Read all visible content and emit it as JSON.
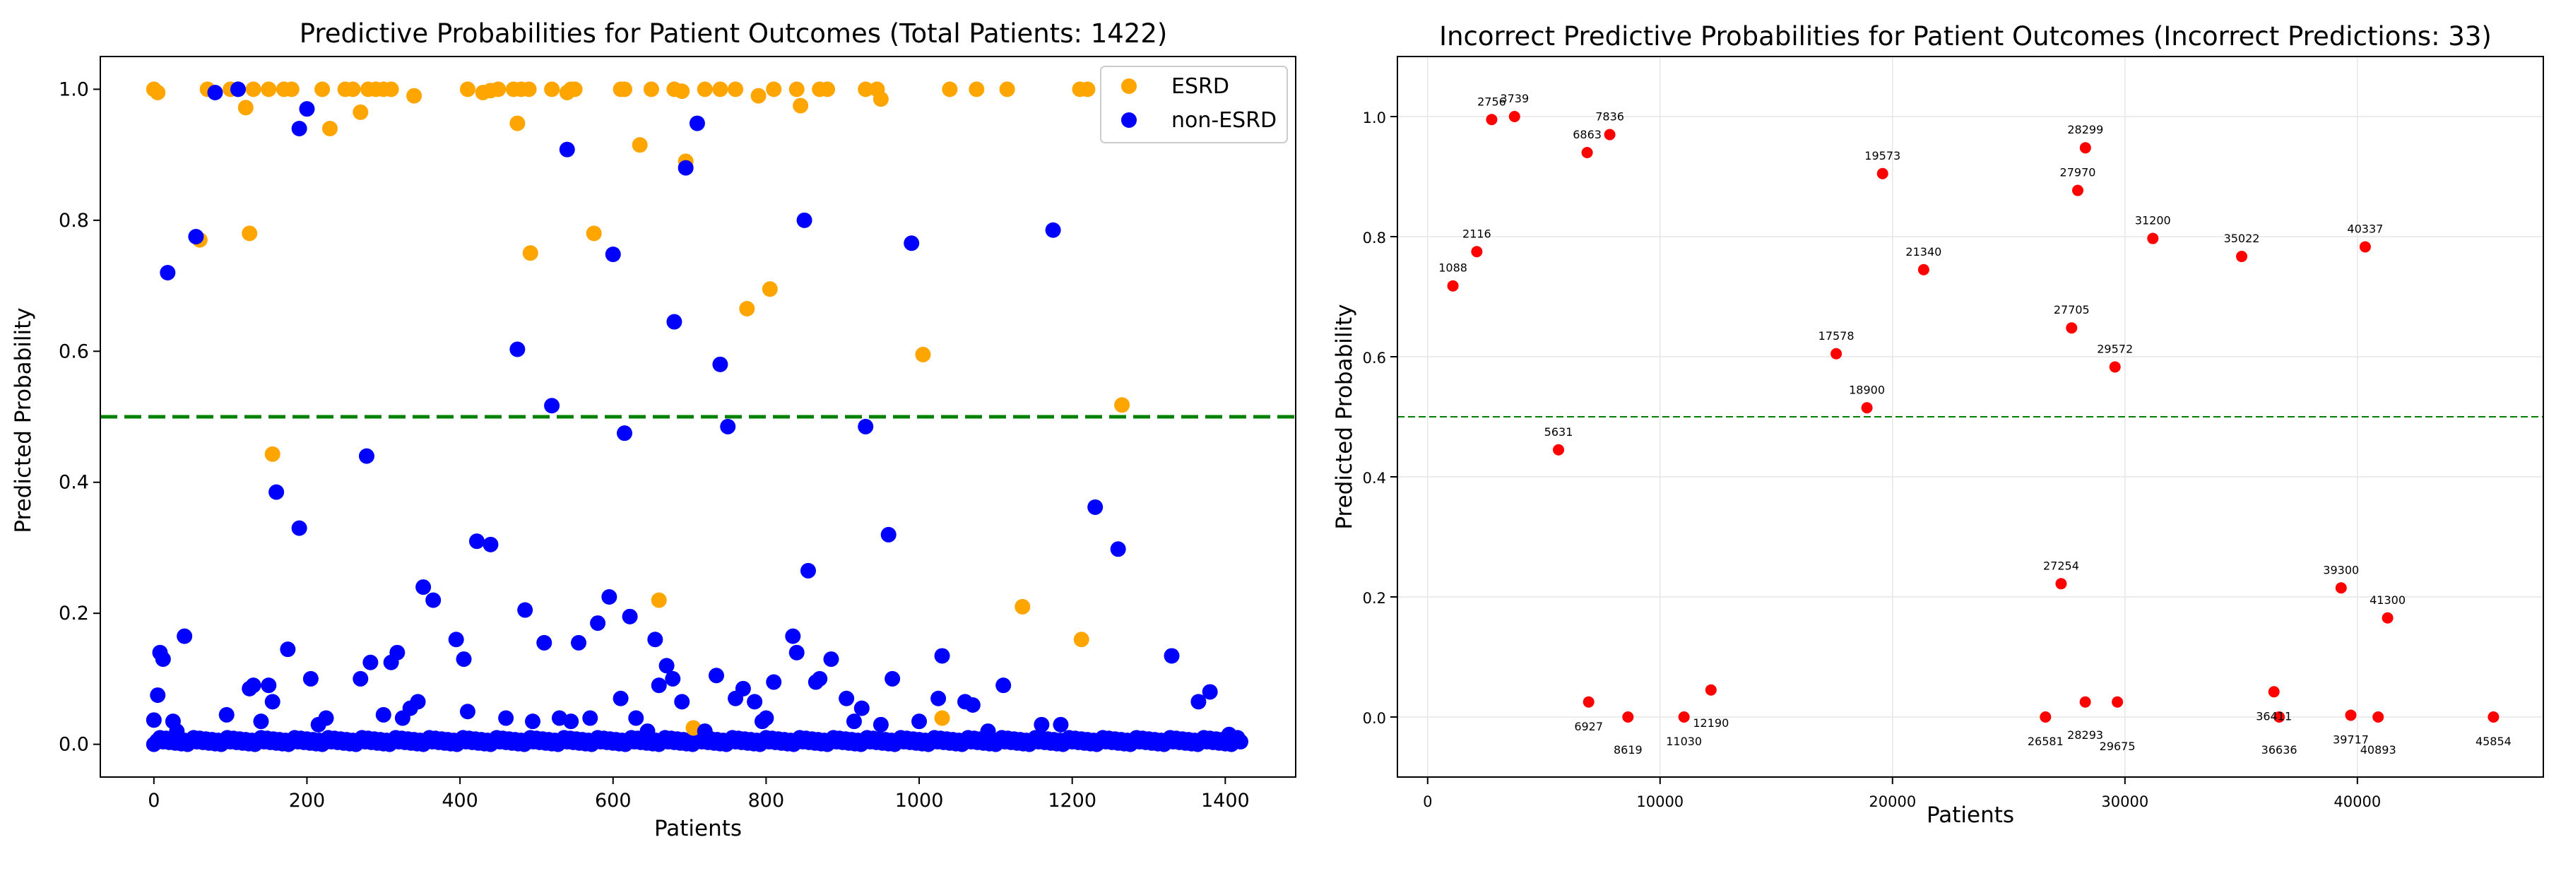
{
  "colors": {
    "esrd": "#FFA500",
    "non_esrd": "#0000FF",
    "threshold": "#008000",
    "incorrect": "#FF0000",
    "grid": "#b0b0b0"
  },
  "chart_data": [
    {
      "type": "scatter",
      "title": "Predictive Probabilities for Patient Outcomes (Total Patients: 1422)",
      "xlabel": "Patients",
      "ylabel": "Predicted Probability",
      "xlim": [
        -70,
        1492
      ],
      "ylim": [
        -0.05,
        1.05
      ],
      "xticks": [
        0,
        200,
        400,
        600,
        800,
        1000,
        1200,
        1400
      ],
      "xtick_labels": [
        "0",
        "200",
        "400",
        "600",
        "800",
        "1000",
        "1200",
        "1400"
      ],
      "yticks": [
        0.0,
        0.2,
        0.4,
        0.6,
        0.8,
        1.0
      ],
      "ytick_labels": [
        "0.0",
        "0.2",
        "0.4",
        "0.6",
        "0.8",
        "1.0"
      ],
      "threshold": 0.5,
      "grid": false,
      "legend": {
        "placement": "top-right",
        "entries": [
          "ESRD",
          "non-ESRD"
        ]
      },
      "series": [
        {
          "name": "ESRD",
          "points": [
            [
              0,
              1.0
            ],
            [
              5,
              0.995
            ],
            [
              60,
              0.77
            ],
            [
              70,
              1.0
            ],
            [
              100,
              1.0
            ],
            [
              110,
              1.0
            ],
            [
              120,
              0.972
            ],
            [
              125,
              0.78
            ],
            [
              130,
              1.0
            ],
            [
              150,
              1.0
            ],
            [
              155,
              0.443
            ],
            [
              170,
              1.0
            ],
            [
              180,
              1.0
            ],
            [
              220,
              1.0
            ],
            [
              230,
              0.94
            ],
            [
              250,
              1.0
            ],
            [
              260,
              1.0
            ],
            [
              270,
              0.965
            ],
            [
              280,
              1.0
            ],
            [
              290,
              1.0
            ],
            [
              300,
              1.0
            ],
            [
              310,
              1.0
            ],
            [
              340,
              0.99
            ],
            [
              410,
              1.0
            ],
            [
              430,
              0.995
            ],
            [
              440,
              0.998
            ],
            [
              450,
              1.0
            ],
            [
              470,
              1.0
            ],
            [
              475,
              0.948
            ],
            [
              480,
              1.0
            ],
            [
              490,
              1.0
            ],
            [
              492,
              0.75
            ],
            [
              520,
              1.0
            ],
            [
              540,
              0.995
            ],
            [
              545,
              1.0
            ],
            [
              550,
              1.0
            ],
            [
              575,
              0.78
            ],
            [
              610,
              1.0
            ],
            [
              615,
              1.0
            ],
            [
              635,
              0.915
            ],
            [
              650,
              1.0
            ],
            [
              660,
              0.22
            ],
            [
              680,
              1.0
            ],
            [
              690,
              0.997
            ],
            [
              695,
              0.89
            ],
            [
              705,
              0.025
            ],
            [
              720,
              1.0
            ],
            [
              740,
              1.0
            ],
            [
              760,
              1.0
            ],
            [
              775,
              0.665
            ],
            [
              790,
              0.99
            ],
            [
              805,
              0.695
            ],
            [
              810,
              1.0
            ],
            [
              840,
              1.0
            ],
            [
              845,
              0.975
            ],
            [
              870,
              1.0
            ],
            [
              880,
              1.0
            ],
            [
              930,
              1.0
            ],
            [
              945,
              1.0
            ],
            [
              950,
              0.985
            ],
            [
              1005,
              0.595
            ],
            [
              1030,
              0.04
            ],
            [
              1040,
              1.0
            ],
            [
              1075,
              1.0
            ],
            [
              1115,
              1.0
            ],
            [
              1135,
              0.21
            ],
            [
              1210,
              1.0
            ],
            [
              1212,
              0.16
            ],
            [
              1220,
              1.0
            ],
            [
              1265,
              0.518
            ]
          ]
        },
        {
          "name": "non-ESRD",
          "points": [
            [
              0,
              0.037
            ],
            [
              5,
              0.075
            ],
            [
              8,
              0.14
            ],
            [
              12,
              0.13
            ],
            [
              18,
              0.72
            ],
            [
              25,
              0.035
            ],
            [
              30,
              0.02
            ],
            [
              40,
              0.165
            ],
            [
              55,
              0.775
            ],
            [
              80,
              0.995
            ],
            [
              95,
              0.045
            ],
            [
              110,
              1.0
            ],
            [
              125,
              0.085
            ],
            [
              130,
              0.09
            ],
            [
              140,
              0.035
            ],
            [
              150,
              0.09
            ],
            [
              155,
              0.065
            ],
            [
              160,
              0.385
            ],
            [
              175,
              0.145
            ],
            [
              190,
              0.94
            ],
            [
              190,
              0.33
            ],
            [
              200,
              0.97
            ],
            [
              205,
              0.1
            ],
            [
              215,
              0.03
            ],
            [
              225,
              0.04
            ],
            [
              270,
              0.1
            ],
            [
              278,
              0.44
            ],
            [
              283,
              0.125
            ],
            [
              300,
              0.045
            ],
            [
              310,
              0.125
            ],
            [
              318,
              0.14
            ],
            [
              325,
              0.04
            ],
            [
              335,
              0.055
            ],
            [
              345,
              0.065
            ],
            [
              352,
              0.24
            ],
            [
              365,
              0.22
            ],
            [
              395,
              0.16
            ],
            [
              405,
              0.13
            ],
            [
              410,
              0.05
            ],
            [
              422,
              0.31
            ],
            [
              440,
              0.305
            ],
            [
              460,
              0.04
            ],
            [
              475,
              0.603
            ],
            [
              485,
              0.205
            ],
            [
              495,
              0.035
            ],
            [
              510,
              0.155
            ],
            [
              520,
              0.517
            ],
            [
              530,
              0.04
            ],
            [
              540,
              0.908
            ],
            [
              545,
              0.035
            ],
            [
              555,
              0.155
            ],
            [
              570,
              0.04
            ],
            [
              580,
              0.185
            ],
            [
              595,
              0.225
            ],
            [
              600,
              0.748
            ],
            [
              610,
              0.07
            ],
            [
              615,
              0.475
            ],
            [
              622,
              0.195
            ],
            [
              630,
              0.04
            ],
            [
              645,
              0.02
            ],
            [
              655,
              0.16
            ],
            [
              660,
              0.09
            ],
            [
              670,
              0.12
            ],
            [
              678,
              0.1
            ],
            [
              680,
              0.645
            ],
            [
              690,
              0.065
            ],
            [
              695,
              0.88
            ],
            [
              710,
              0.948
            ],
            [
              720,
              0.02
            ],
            [
              735,
              0.105
            ],
            [
              740,
              0.58
            ],
            [
              750,
              0.485
            ],
            [
              760,
              0.07
            ],
            [
              770,
              0.085
            ],
            [
              785,
              0.065
            ],
            [
              795,
              0.035
            ],
            [
              800,
              0.04
            ],
            [
              810,
              0.095
            ],
            [
              835,
              0.165
            ],
            [
              840,
              0.14
            ],
            [
              850,
              0.8
            ],
            [
              855,
              0.265
            ],
            [
              865,
              0.095
            ],
            [
              870,
              0.1
            ],
            [
              885,
              0.13
            ],
            [
              905,
              0.07
            ],
            [
              915,
              0.035
            ],
            [
              925,
              0.055
            ],
            [
              930,
              0.485
            ],
            [
              950,
              0.03
            ],
            [
              960,
              0.32
            ],
            [
              965,
              0.1
            ],
            [
              990,
              0.765
            ],
            [
              1000,
              0.035
            ],
            [
              1025,
              0.07
            ],
            [
              1030,
              0.135
            ],
            [
              1060,
              0.065
            ],
            [
              1070,
              0.06
            ],
            [
              1090,
              0.02
            ],
            [
              1110,
              0.09
            ],
            [
              1160,
              0.03
            ],
            [
              1175,
              0.785
            ],
            [
              1185,
              0.03
            ],
            [
              1230,
              0.362
            ],
            [
              1260,
              0.298
            ],
            [
              1330,
              0.135
            ],
            [
              1365,
              0.065
            ],
            [
              1380,
              0.08
            ],
            [
              1405,
              0.015
            ]
          ]
        }
      ]
    },
    {
      "type": "scatter",
      "title": "Incorrect Predictive Probabilities for Patient Outcomes (Incorrect Predictions: 33)",
      "xlabel": "Patients",
      "ylabel": "Predicted Probability",
      "xlim": [
        -1300,
        48000
      ],
      "ylim": [
        -0.1,
        1.1
      ],
      "xticks": [
        0,
        10000,
        20000,
        30000,
        40000
      ],
      "xtick_labels": [
        "0",
        "10000",
        "20000",
        "30000",
        "40000"
      ],
      "yticks": [
        0.0,
        0.2,
        0.4,
        0.6,
        0.8,
        1.0
      ],
      "ytick_labels": [
        "0.0",
        "0.2",
        "0.4",
        "0.6",
        "0.8",
        "1.0"
      ],
      "threshold": 0.5,
      "grid": true,
      "points": [
        {
          "id": "1088",
          "x": 1088,
          "y": 0.718,
          "label_pos": "above"
        },
        {
          "id": "2116",
          "x": 2116,
          "y": 0.775,
          "label_pos": "above"
        },
        {
          "id": "2756",
          "x": 2756,
          "y": 0.995,
          "label_pos": "above"
        },
        {
          "id": "3739",
          "x": 3739,
          "y": 1.0,
          "label_pos": "above"
        },
        {
          "id": "5631",
          "x": 5631,
          "y": 0.445,
          "label_pos": "above"
        },
        {
          "id": "6863",
          "x": 6863,
          "y": 0.94,
          "label_pos": "above"
        },
        {
          "id": "6927",
          "x": 6927,
          "y": 0.025,
          "label_pos": "below"
        },
        {
          "id": "7836",
          "x": 7836,
          "y": 0.97,
          "label_pos": "above"
        },
        {
          "id": "8619",
          "x": 8619,
          "y": 0.0,
          "label_pos": "below"
        },
        {
          "id": "11030",
          "x": 11030,
          "y": 0.0,
          "label_pos": "below"
        },
        {
          "id": "12190",
          "x": 12190,
          "y": 0.045,
          "label_pos": "below"
        },
        {
          "id": "17578",
          "x": 17578,
          "y": 0.605,
          "label_pos": "above"
        },
        {
          "id": "18900",
          "x": 18900,
          "y": 0.515,
          "label_pos": "above"
        },
        {
          "id": "19573",
          "x": 19573,
          "y": 0.905,
          "label_pos": "above"
        },
        {
          "id": "21340",
          "x": 21340,
          "y": 0.745,
          "label_pos": "above"
        },
        {
          "id": "26581",
          "x": 26581,
          "y": 0.0,
          "label_pos": "below"
        },
        {
          "id": "27254",
          "x": 27254,
          "y": 0.222,
          "label_pos": "above"
        },
        {
          "id": "27705",
          "x": 27705,
          "y": 0.648,
          "label_pos": "above"
        },
        {
          "id": "27970",
          "x": 27970,
          "y": 0.877,
          "label_pos": "above"
        },
        {
          "id": "28293",
          "x": 28293,
          "y": 0.025,
          "label_pos": "below"
        },
        {
          "id": "28299",
          "x": 28299,
          "y": 0.948,
          "label_pos": "above"
        },
        {
          "id": "29572",
          "x": 29572,
          "y": 0.583,
          "label_pos": "above"
        },
        {
          "id": "29675",
          "x": 29675,
          "y": 0.025,
          "label_pos": "below"
        },
        {
          "id": "31200",
          "x": 31200,
          "y": 0.797,
          "label_pos": "above"
        },
        {
          "id": "35022",
          "x": 35022,
          "y": 0.767,
          "label_pos": "above"
        },
        {
          "id": "36411",
          "x": 36411,
          "y": 0.042,
          "label_pos": "below"
        },
        {
          "id": "36636",
          "x": 36636,
          "y": 0.0,
          "label_pos": "below"
        },
        {
          "id": "39300",
          "x": 39300,
          "y": 0.215,
          "label_pos": "above"
        },
        {
          "id": "39717",
          "x": 39717,
          "y": 0.003,
          "label_pos": "below"
        },
        {
          "id": "40337",
          "x": 40337,
          "y": 0.783,
          "label_pos": "above"
        },
        {
          "id": "40893",
          "x": 40893,
          "y": 0.0,
          "label_pos": "below"
        },
        {
          "id": "41300",
          "x": 41300,
          "y": 0.165,
          "label_pos": "above"
        },
        {
          "id": "45854",
          "x": 45854,
          "y": 0.0,
          "label_pos": "below"
        }
      ]
    }
  ]
}
